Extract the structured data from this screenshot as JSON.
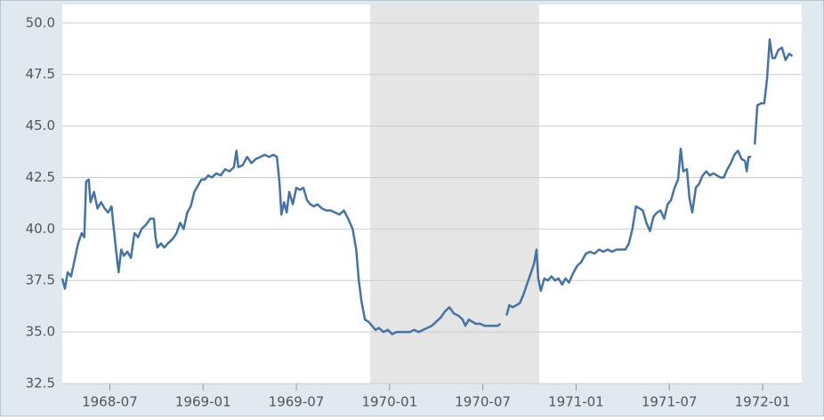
{
  "chart_data": {
    "type": "line",
    "xlim": [
      1968.245,
      1972.21
    ],
    "xticks": [
      {
        "value": 1968.5,
        "label": "1968-07"
      },
      {
        "value": 1969.0,
        "label": "1969-01"
      },
      {
        "value": 1969.5,
        "label": "1969-07"
      },
      {
        "value": 1970.0,
        "label": "1970-01"
      },
      {
        "value": 1970.5,
        "label": "1970-07"
      },
      {
        "value": 1971.0,
        "label": "1971-01"
      },
      {
        "value": 1971.5,
        "label": "1971-07"
      },
      {
        "value": 1972.0,
        "label": "1972-01"
      }
    ],
    "ylim": [
      32.5,
      50.9
    ],
    "yticks": [
      32.5,
      {
        "value": 35,
        "label": "35.0"
      },
      37.5,
      {
        "value": 40,
        "label": "40.0"
      },
      42.5,
      {
        "value": 45,
        "label": "45.0"
      },
      47.5,
      {
        "value": 50,
        "label": "50.0"
      }
    ],
    "grid": true,
    "shaded": [
      [
        1969.896,
        1970.802
      ]
    ],
    "shade_color": "#e5e5e5",
    "series": [
      {
        "color": "#4572a7",
        "x": [
          1968.245,
          1968.259,
          1968.274,
          1968.292,
          1968.311,
          1968.33,
          1968.349,
          1968.363,
          1968.373,
          1968.387,
          1968.396,
          1968.415,
          1968.434,
          1968.453,
          1968.472,
          1968.491,
          1968.509,
          1968.519,
          1968.533,
          1968.547,
          1968.561,
          1968.575,
          1968.594,
          1968.613,
          1968.632,
          1968.651,
          1968.67,
          1968.693,
          1968.717,
          1968.736,
          1968.745,
          1968.755,
          1968.774,
          1968.792,
          1968.811,
          1968.835,
          1968.858,
          1968.877,
          1968.896,
          1968.915,
          1968.934,
          1968.953,
          1968.972,
          1968.991,
          1969.009,
          1969.028,
          1969.047,
          1969.071,
          1969.094,
          1969.118,
          1969.142,
          1969.165,
          1969.179,
          1969.189,
          1969.212,
          1969.236,
          1969.259,
          1969.283,
          1969.307,
          1969.33,
          1969.354,
          1969.377,
          1969.396,
          1969.41,
          1969.42,
          1969.434,
          1969.448,
          1969.462,
          1969.481,
          1969.5,
          1969.519,
          1969.538,
          1969.557,
          1969.575,
          1969.594,
          1969.613,
          1969.637,
          1969.66,
          1969.684,
          1969.708,
          1969.731,
          1969.755,
          1969.778,
          1969.802,
          1969.821,
          1969.835,
          1969.849,
          1969.868,
          1969.887,
          1969.906,
          1969.925,
          1969.943,
          1969.967,
          1969.991,
          1970.014,
          1970.038,
          1970.061,
          1970.085,
          1970.108,
          1970.132,
          1970.156,
          1970.179,
          1970.203,
          1970.226,
          1970.25,
          1970.274,
          1970.297,
          1970.321,
          1970.344,
          1970.368,
          1970.392,
          1970.406,
          1970.425,
          1970.443,
          1970.462,
          1970.486,
          1970.509,
          1970.533,
          1970.557,
          1970.58,
          1970.594,
          1970.608,
          1970.627,
          1970.642,
          1970.66,
          1970.679,
          1970.698,
          1970.717,
          1970.736,
          1970.755,
          1970.774,
          1970.788,
          1970.797,
          1970.811,
          1970.83,
          1970.849,
          1970.868,
          1970.887,
          1970.906,
          1970.925,
          1970.943,
          1970.962,
          1970.981,
          1971.005,
          1971.028,
          1971.052,
          1971.075,
          1971.099,
          1971.123,
          1971.146,
          1971.17,
          1971.193,
          1971.217,
          1971.241,
          1971.264,
          1971.283,
          1971.302,
          1971.321,
          1971.34,
          1971.358,
          1971.377,
          1971.396,
          1971.415,
          1971.434,
          1971.453,
          1971.472,
          1971.491,
          1971.509,
          1971.528,
          1971.547,
          1971.561,
          1971.575,
          1971.594,
          1971.608,
          1971.623,
          1971.642,
          1971.66,
          1971.679,
          1971.698,
          1971.717,
          1971.736,
          1971.755,
          1971.774,
          1971.792,
          1971.811,
          1971.83,
          1971.849,
          1971.868,
          1971.887,
          1971.906,
          1971.915,
          1971.925,
          1971.939,
          1971.948,
          1971.958,
          1971.972,
          1971.991,
          1972.009,
          1972.024,
          1972.038,
          1972.052,
          1972.066,
          1972.085,
          1972.104,
          1972.123,
          1972.142,
          1972.16
        ],
        "values": [
          37.6,
          37.1,
          37.9,
          37.7,
          38.5,
          39.3,
          39.8,
          39.6,
          42.3,
          42.4,
          41.3,
          41.8,
          41.0,
          41.3,
          41.0,
          40.8,
          41.1,
          40.2,
          39.0,
          37.9,
          39.0,
          38.7,
          38.9,
          38.6,
          39.8,
          39.6,
          40.0,
          40.2,
          40.5,
          40.5,
          39.6,
          39.1,
          39.3,
          39.1,
          39.3,
          39.5,
          39.8,
          40.3,
          40.0,
          40.8,
          41.1,
          41.8,
          42.1,
          42.4,
          42.4,
          42.6,
          42.5,
          42.7,
          42.6,
          42.9,
          42.8,
          43.0,
          43.8,
          43.0,
          43.1,
          43.5,
          43.2,
          43.4,
          43.5,
          43.6,
          43.5,
          43.6,
          43.5,
          42.2,
          40.7,
          41.3,
          40.8,
          41.8,
          41.2,
          42.0,
          41.9,
          42.0,
          41.4,
          41.2,
          41.1,
          41.2,
          41.0,
          40.9,
          40.9,
          40.8,
          40.7,
          40.9,
          40.5,
          40.0,
          39.0,
          37.5,
          36.5,
          35.6,
          35.5,
          35.3,
          35.1,
          35.2,
          35.0,
          35.1,
          34.9,
          35.0,
          35.0,
          35.0,
          35.0,
          35.1,
          35.0,
          35.1,
          35.2,
          35.3,
          35.5,
          35.7,
          36.0,
          36.2,
          35.9,
          35.8,
          35.6,
          35.3,
          35.6,
          35.5,
          35.4,
          35.4,
          35.3,
          35.3,
          35.3,
          35.3,
          35.4,
          null,
          35.8,
          36.3,
          36.2,
          36.3,
          36.4,
          36.8,
          37.3,
          37.8,
          38.3,
          39.0,
          37.6,
          37.0,
          37.6,
          37.5,
          37.7,
          37.5,
          37.6,
          37.3,
          37.6,
          37.4,
          37.8,
          38.2,
          38.4,
          38.8,
          38.9,
          38.8,
          39.0,
          38.9,
          39.0,
          38.9,
          39.0,
          39.0,
          39.0,
          39.3,
          40.0,
          41.1,
          41.0,
          40.9,
          40.3,
          39.9,
          40.6,
          40.8,
          40.9,
          40.5,
          41.2,
          41.4,
          42.0,
          42.4,
          43.9,
          42.8,
          42.9,
          41.5,
          40.8,
          42.0,
          42.2,
          42.6,
          42.8,
          42.6,
          42.7,
          42.6,
          42.5,
          42.5,
          42.9,
          43.2,
          43.6,
          43.8,
          43.4,
          43.3,
          42.8,
          43.5,
          43.5,
          null,
          44.1,
          46.0,
          46.1,
          46.1,
          47.3,
          49.2,
          48.3,
          48.3,
          48.7,
          48.8,
          48.2,
          48.5,
          48.4
        ]
      }
    ]
  }
}
